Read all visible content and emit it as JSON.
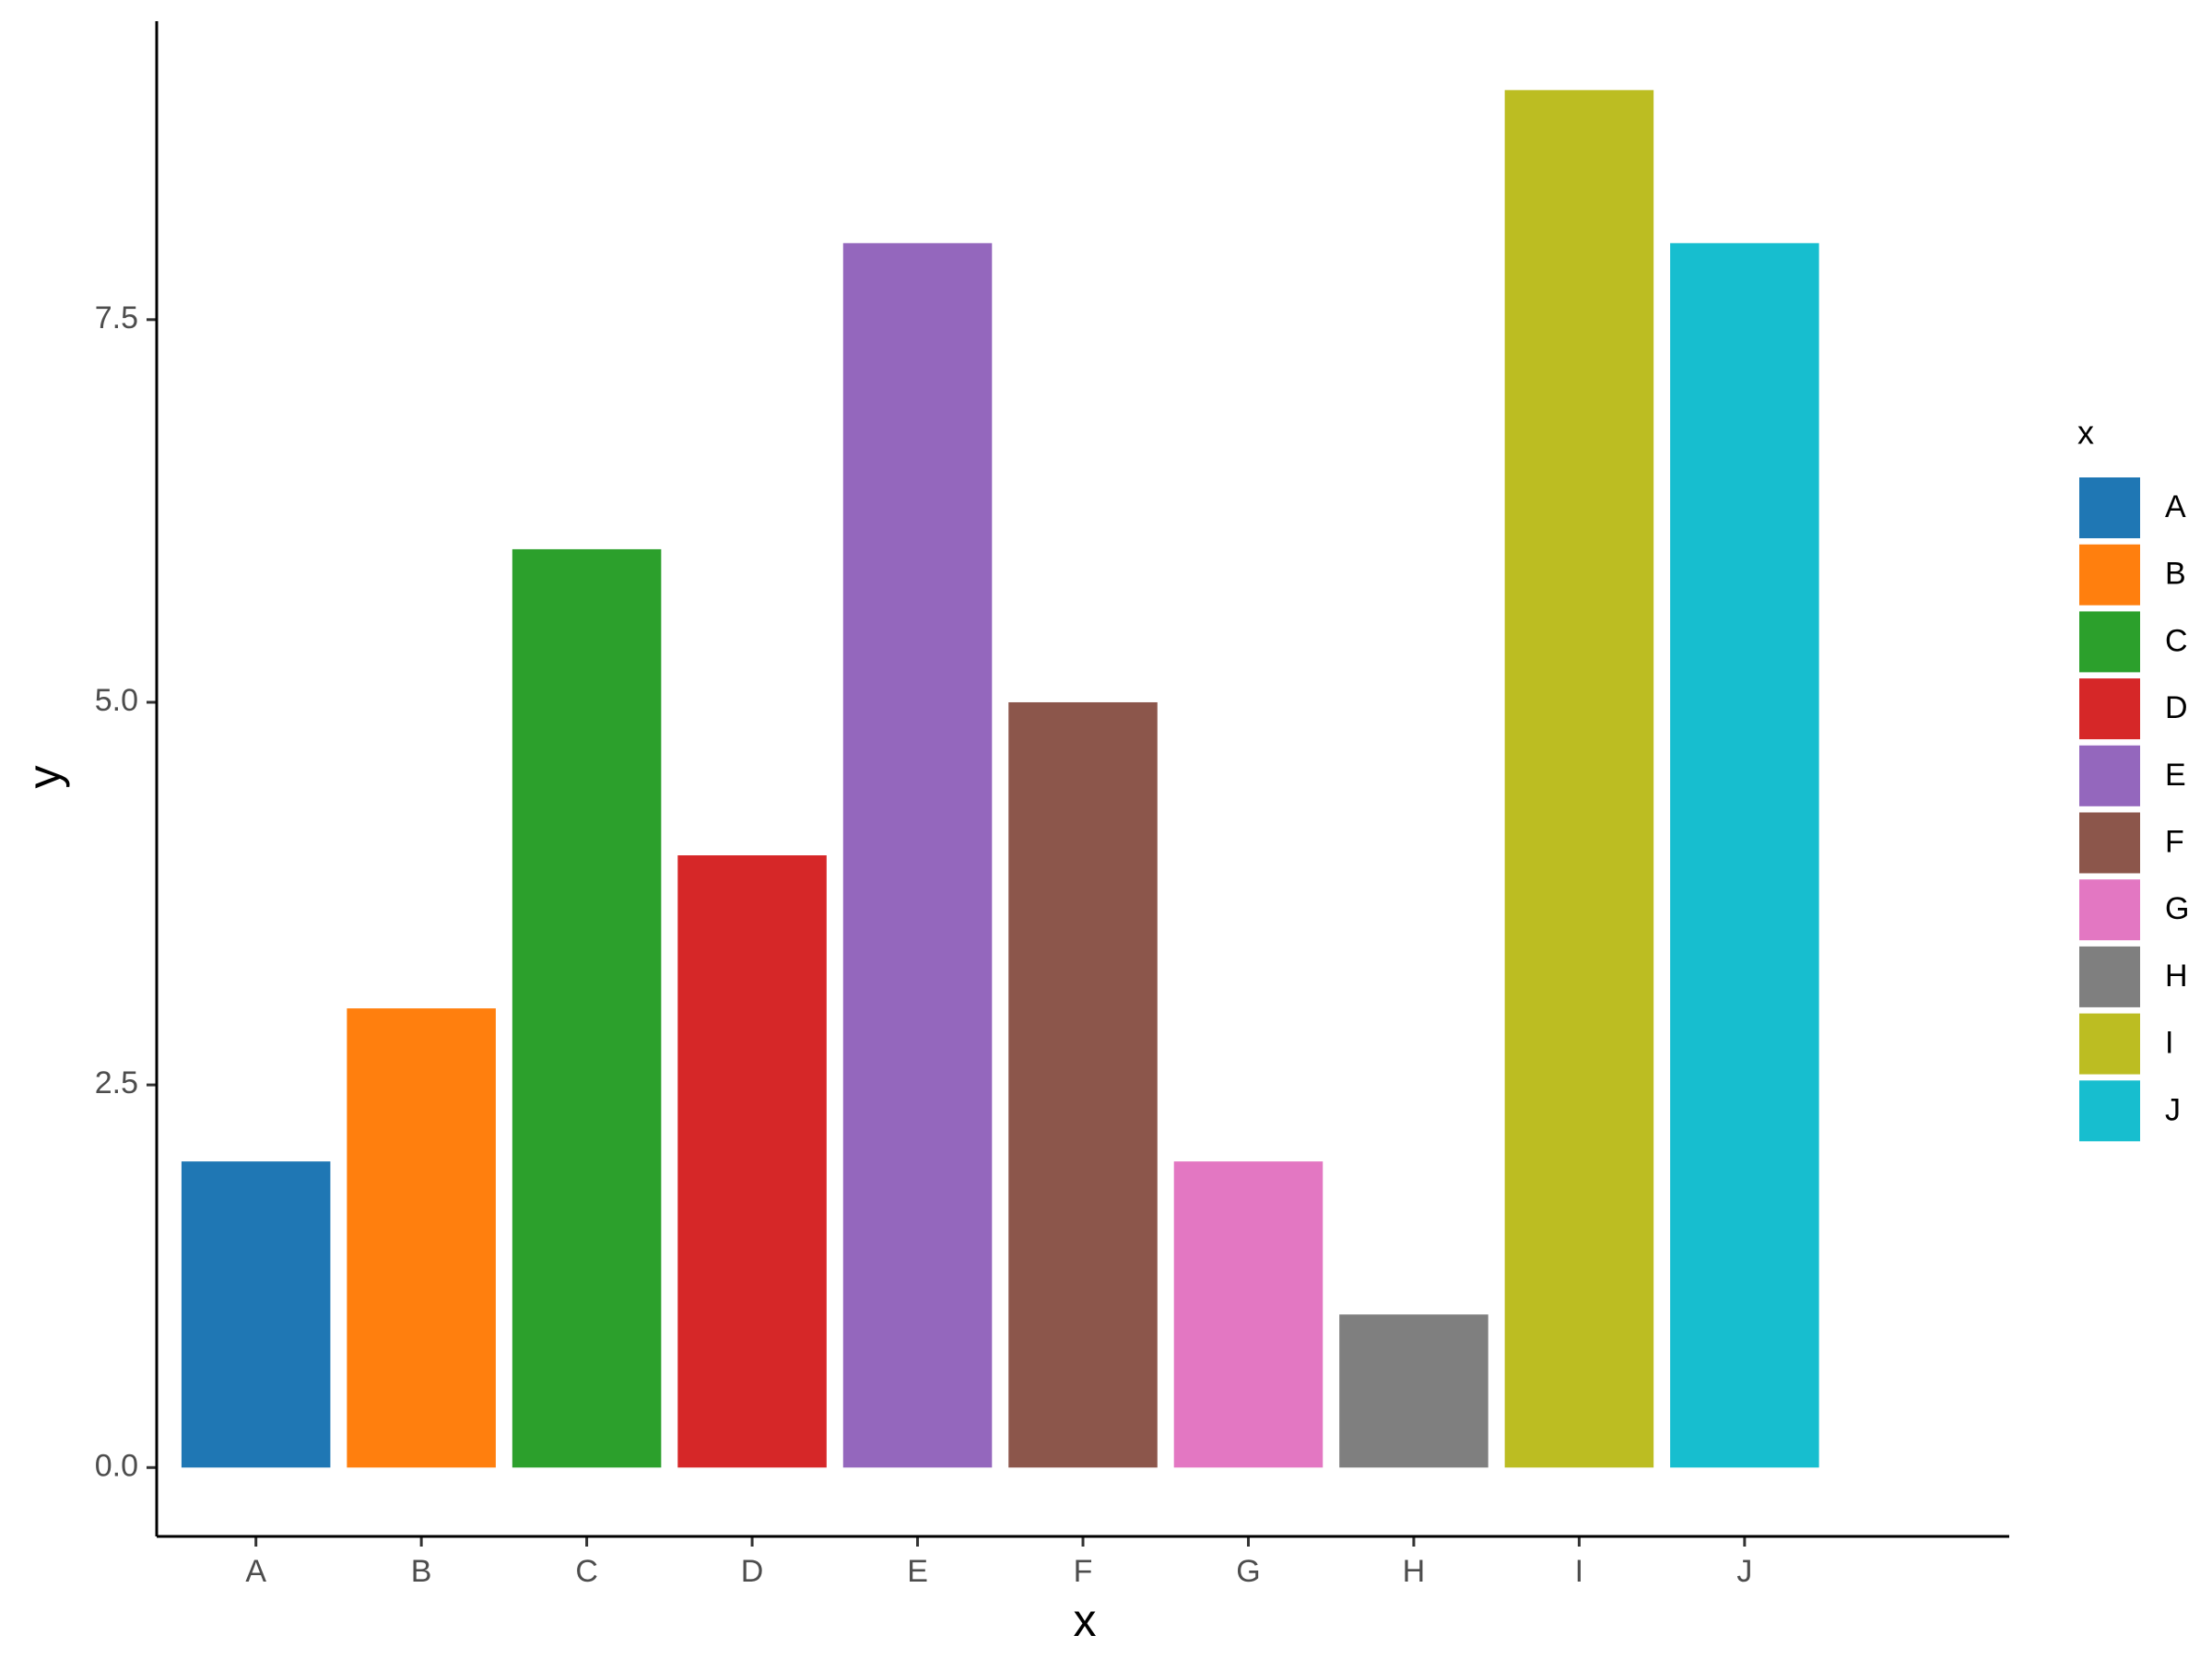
{
  "chart_data": {
    "type": "bar",
    "x_label": "x",
    "y_label": "y",
    "legend_title": "x",
    "categories": [
      "A",
      "B",
      "C",
      "D",
      "E",
      "F",
      "G",
      "H",
      "I",
      "J"
    ],
    "values": [
      2,
      3,
      6,
      4,
      8,
      5,
      2,
      1,
      9,
      8
    ],
    "colors": [
      "#1f77b4",
      "#ff7f0e",
      "#2ca02c",
      "#d62728",
      "#9467bd",
      "#8c564b",
      "#e377c2",
      "#7f7f7f",
      "#bcbd22",
      "#17becf"
    ],
    "ylim": [
      -0.45,
      9.45
    ],
    "yticks": [
      {
        "value": 0,
        "label": "0.0"
      },
      {
        "value": 2.5,
        "label": "2.5"
      },
      {
        "value": 5,
        "label": "5.0"
      },
      {
        "value": 7.5,
        "label": "7.5"
      }
    ],
    "grid": false,
    "legend": "right"
  }
}
